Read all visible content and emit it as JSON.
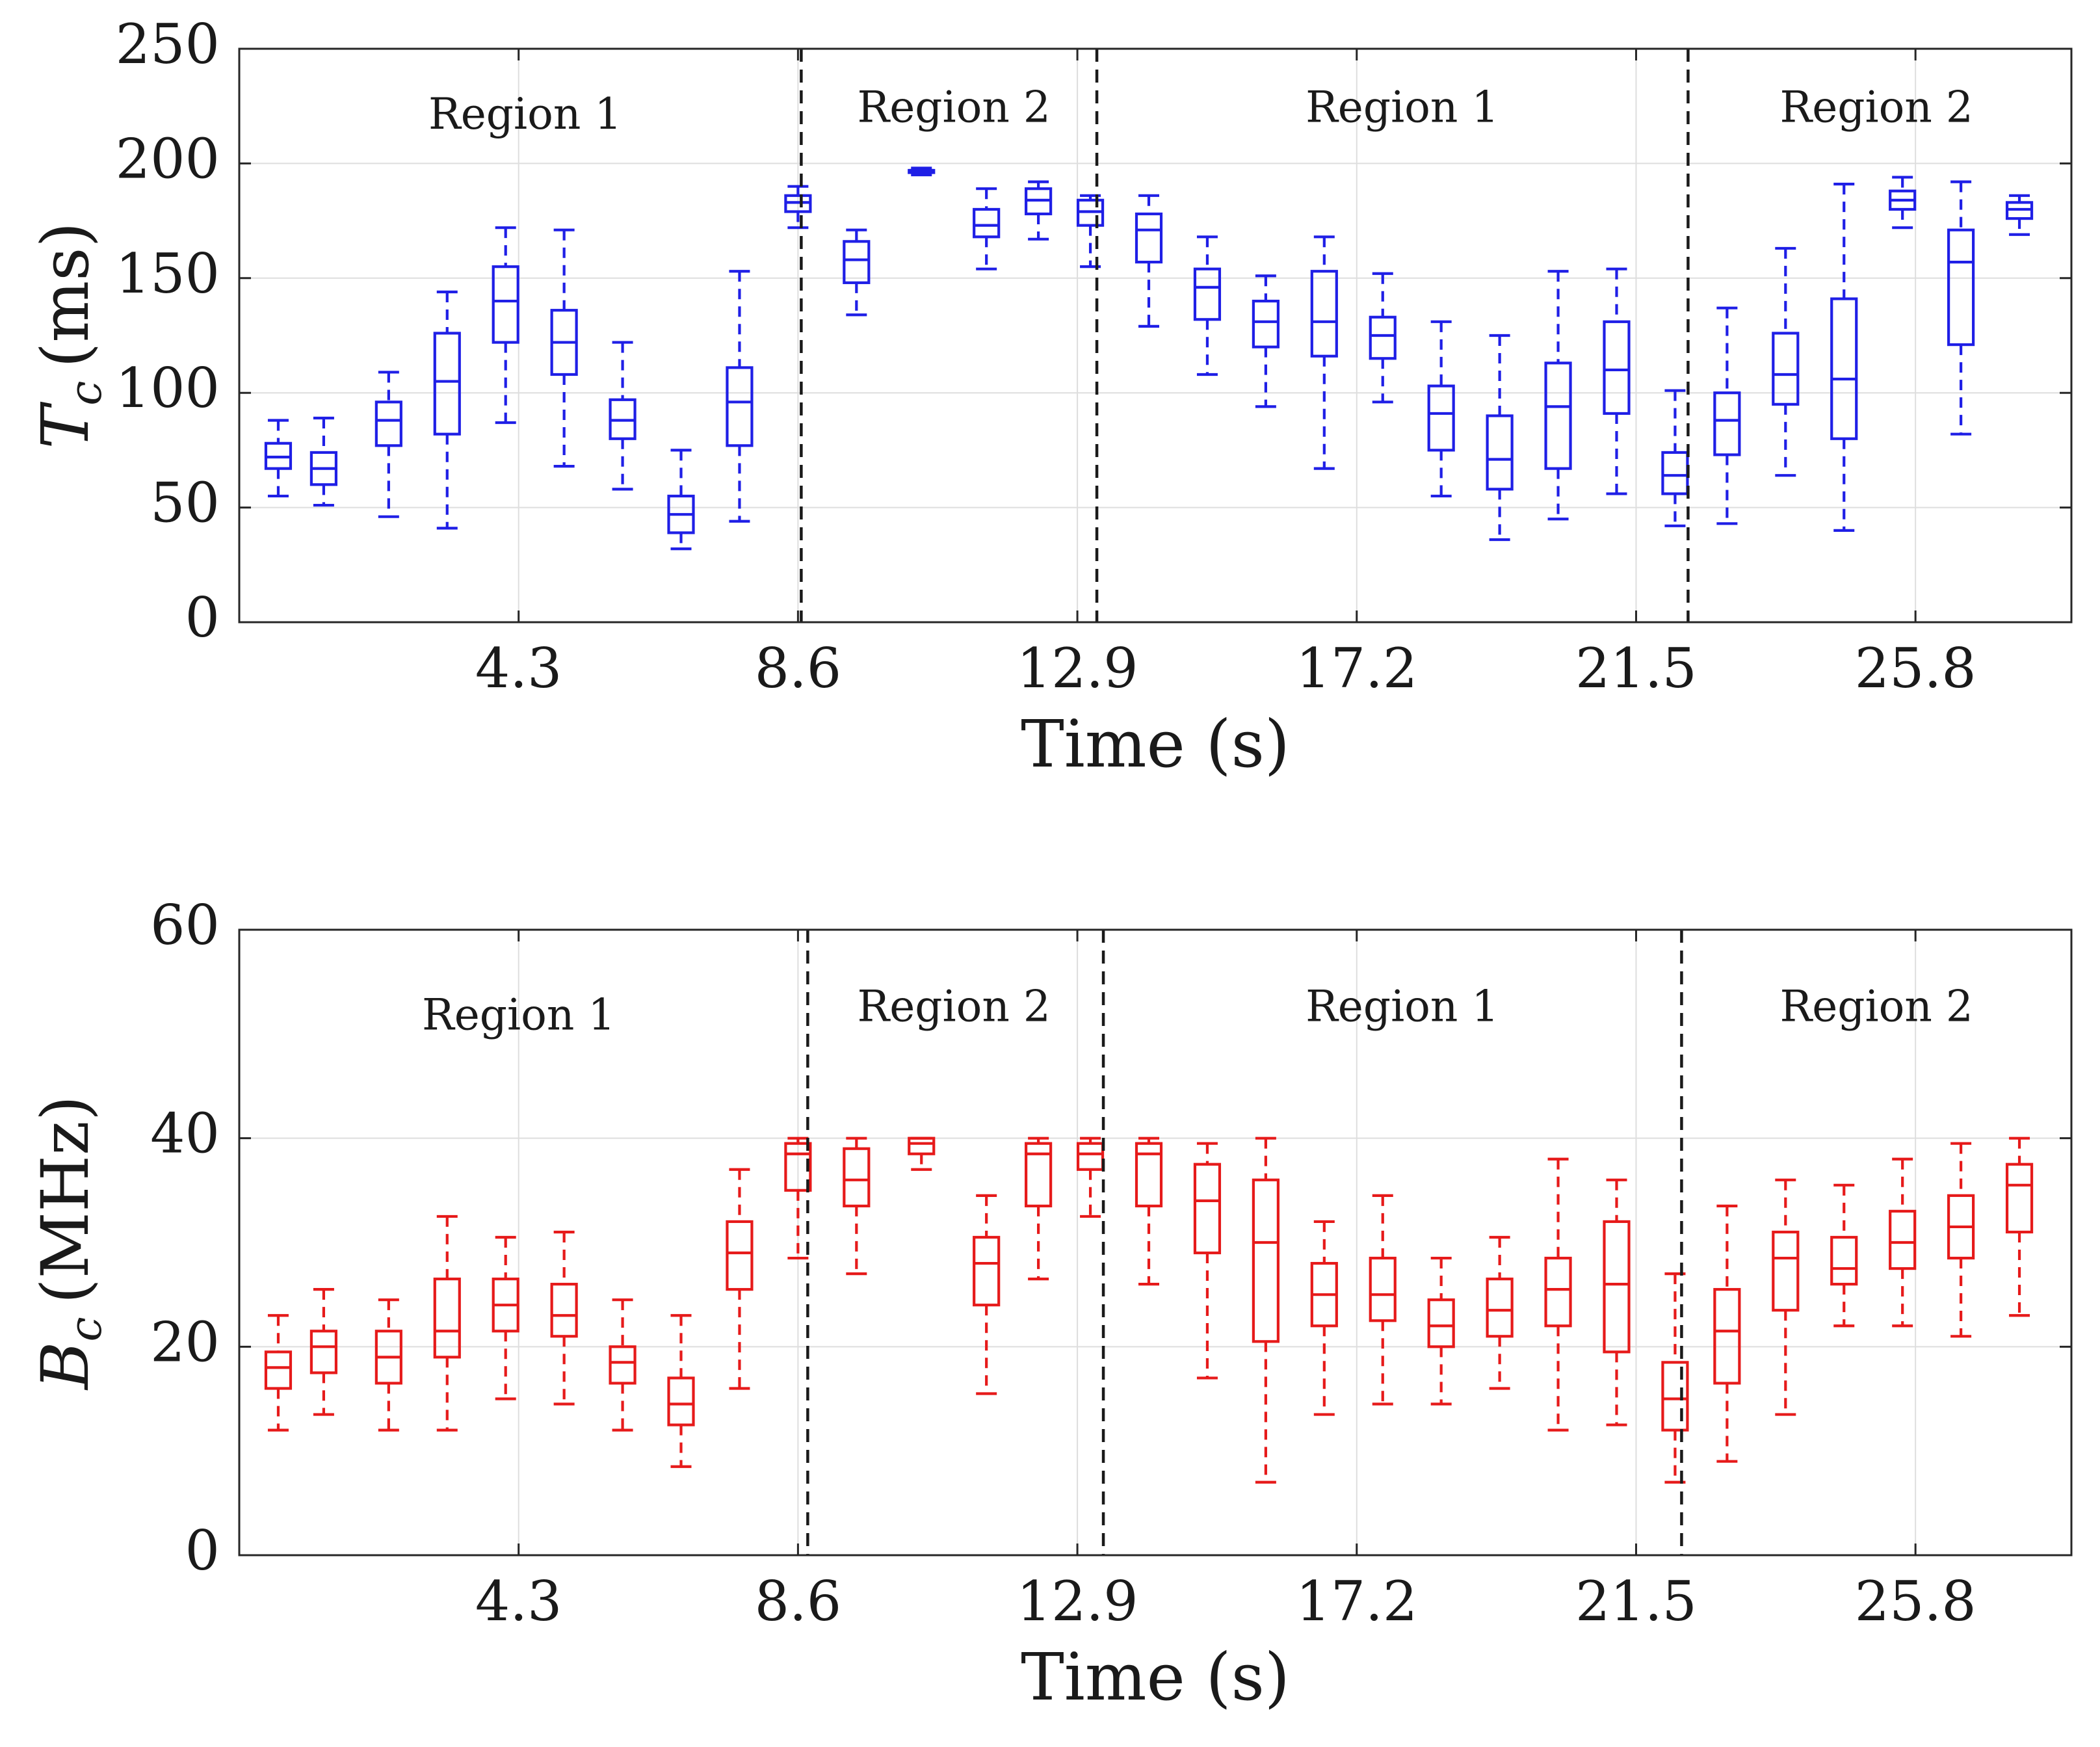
{
  "chart_data": [
    {
      "type": "box",
      "name": "top",
      "color": "#1f1fe6",
      "xlabel": "Time (s)",
      "ylabel": {
        "symbol": "T",
        "subscript": "c",
        "unit": "(ms)"
      },
      "xlim": [
        0,
        28.2
      ],
      "ylim": [
        0,
        250
      ],
      "yticks": [
        0,
        50,
        100,
        150,
        200,
        250
      ],
      "xticks": [
        4.3,
        8.6,
        12.9,
        17.2,
        21.5,
        25.8
      ],
      "xtick_labels": [
        "4.3",
        "8.6",
        "12.9",
        "17.2",
        "21.5",
        "25.8"
      ],
      "grid": true,
      "boundaries": [
        8.65,
        13.2,
        22.3
      ],
      "regions": [
        {
          "label": "Region 1",
          "x": 4.4,
          "y": 220
        },
        {
          "label": "Region 2",
          "x": 11.0,
          "y": 223
        },
        {
          "label": "Region 1",
          "x": 17.9,
          "y": 223
        },
        {
          "label": "Region 2",
          "x": 25.2,
          "y": 223
        }
      ],
      "boxes": [
        {
          "x": 0.6,
          "wmin": 55,
          "q1": 67,
          "median": 72,
          "q3": 78,
          "wmax": 88
        },
        {
          "x": 1.3,
          "wmin": 51,
          "q1": 60,
          "median": 67,
          "q3": 74,
          "wmax": 89
        },
        {
          "x": 2.3,
          "wmin": 46,
          "q1": 77,
          "median": 88,
          "q3": 96,
          "wmax": 109
        },
        {
          "x": 3.2,
          "wmin": 41,
          "q1": 82,
          "median": 105,
          "q3": 126,
          "wmax": 144
        },
        {
          "x": 4.1,
          "wmin": 87,
          "q1": 122,
          "median": 140,
          "q3": 155,
          "wmax": 172
        },
        {
          "x": 5.0,
          "wmin": 68,
          "q1": 108,
          "median": 122,
          "q3": 136,
          "wmax": 171
        },
        {
          "x": 5.9,
          "wmin": 58,
          "q1": 80,
          "median": 88,
          "q3": 97,
          "wmax": 122
        },
        {
          "x": 6.8,
          "wmin": 32,
          "q1": 39,
          "median": 47,
          "q3": 55,
          "wmax": 75
        },
        {
          "x": 7.7,
          "wmin": 44,
          "q1": 77,
          "median": 96,
          "q3": 111,
          "wmax": 153
        },
        {
          "x": 8.6,
          "wmin": 172,
          "q1": 179,
          "median": 183,
          "q3": 186,
          "wmax": 190
        },
        {
          "x": 9.5,
          "wmin": 134,
          "q1": 148,
          "median": 158,
          "q3": 166,
          "wmax": 171
        },
        {
          "x": 10.5,
          "wmin": 195,
          "q1": 196,
          "median": 197,
          "q3": 197,
          "wmax": 198
        },
        {
          "x": 11.5,
          "wmin": 154,
          "q1": 168,
          "median": 173,
          "q3": 180,
          "wmax": 189
        },
        {
          "x": 12.3,
          "wmin": 167,
          "q1": 178,
          "median": 184,
          "q3": 189,
          "wmax": 192
        },
        {
          "x": 13.1,
          "wmin": 155,
          "q1": 173,
          "median": 179,
          "q3": 184,
          "wmax": 186
        },
        {
          "x": 14.0,
          "wmin": 129,
          "q1": 157,
          "median": 171,
          "q3": 178,
          "wmax": 186
        },
        {
          "x": 14.9,
          "wmin": 108,
          "q1": 132,
          "median": 146,
          "q3": 154,
          "wmax": 168
        },
        {
          "x": 15.8,
          "wmin": 94,
          "q1": 120,
          "median": 131,
          "q3": 140,
          "wmax": 151
        },
        {
          "x": 16.7,
          "wmin": 67,
          "q1": 116,
          "median": 131,
          "q3": 153,
          "wmax": 168
        },
        {
          "x": 17.6,
          "wmin": 96,
          "q1": 115,
          "median": 125,
          "q3": 133,
          "wmax": 152
        },
        {
          "x": 18.5,
          "wmin": 55,
          "q1": 75,
          "median": 91,
          "q3": 103,
          "wmax": 131
        },
        {
          "x": 19.4,
          "wmin": 36,
          "q1": 58,
          "median": 71,
          "q3": 90,
          "wmax": 125
        },
        {
          "x": 20.3,
          "wmin": 45,
          "q1": 67,
          "median": 94,
          "q3": 113,
          "wmax": 153
        },
        {
          "x": 21.2,
          "wmin": 56,
          "q1": 91,
          "median": 110,
          "q3": 131,
          "wmax": 154
        },
        {
          "x": 22.1,
          "wmin": 42,
          "q1": 56,
          "median": 64,
          "q3": 74,
          "wmax": 101
        },
        {
          "x": 22.9,
          "wmin": 43,
          "q1": 73,
          "median": 88,
          "q3": 100,
          "wmax": 137
        },
        {
          "x": 23.8,
          "wmin": 64,
          "q1": 95,
          "median": 108,
          "q3": 126,
          "wmax": 163
        },
        {
          "x": 24.7,
          "wmin": 40,
          "q1": 80,
          "median": 106,
          "q3": 141,
          "wmax": 191
        },
        {
          "x": 25.6,
          "wmin": 172,
          "q1": 180,
          "median": 184,
          "q3": 188,
          "wmax": 194
        },
        {
          "x": 26.5,
          "wmin": 82,
          "q1": 121,
          "median": 157,
          "q3": 171,
          "wmax": 192
        },
        {
          "x": 27.4,
          "wmin": 169,
          "q1": 176,
          "median": 180,
          "q3": 183,
          "wmax": 186
        }
      ]
    },
    {
      "type": "box",
      "name": "bottom",
      "color": "#e61a1a",
      "xlabel": "Time (s)",
      "ylabel": {
        "symbol": "B",
        "subscript": "c",
        "unit": "(MHz)"
      },
      "xlim": [
        0,
        28.2
      ],
      "ylim": [
        0,
        60
      ],
      "yticks": [
        0,
        20,
        40,
        60
      ],
      "xticks": [
        4.3,
        8.6,
        12.9,
        17.2,
        21.5,
        25.8
      ],
      "xtick_labels": [
        "4.3",
        "8.6",
        "12.9",
        "17.2",
        "21.5",
        "25.8"
      ],
      "grid": true,
      "boundaries": [
        8.75,
        13.3,
        22.2
      ],
      "regions": [
        {
          "label": "Region 1",
          "x": 4.3,
          "y": 51.5
        },
        {
          "label": "Region 2",
          "x": 11.0,
          "y": 52.3
        },
        {
          "label": "Region 1",
          "x": 17.9,
          "y": 52.3
        },
        {
          "label": "Region 2",
          "x": 25.2,
          "y": 52.3
        }
      ],
      "boxes": [
        {
          "x": 0.6,
          "wmin": 12,
          "q1": 16,
          "median": 18,
          "q3": 19.5,
          "wmax": 23
        },
        {
          "x": 1.3,
          "wmin": 13.5,
          "q1": 17.5,
          "median": 20,
          "q3": 21.5,
          "wmax": 25.5
        },
        {
          "x": 2.3,
          "wmin": 12,
          "q1": 16.5,
          "median": 19,
          "q3": 21.5,
          "wmax": 24.5
        },
        {
          "x": 3.2,
          "wmin": 12,
          "q1": 19,
          "median": 21.5,
          "q3": 26.5,
          "wmax": 32.5
        },
        {
          "x": 4.1,
          "wmin": 15,
          "q1": 21.5,
          "median": 24,
          "q3": 26.5,
          "wmax": 30.5
        },
        {
          "x": 5.0,
          "wmin": 14.5,
          "q1": 21,
          "median": 23,
          "q3": 26,
          "wmax": 31
        },
        {
          "x": 5.9,
          "wmin": 12,
          "q1": 16.5,
          "median": 18.5,
          "q3": 20,
          "wmax": 24.5
        },
        {
          "x": 6.8,
          "wmin": 8.5,
          "q1": 12.5,
          "median": 14.5,
          "q3": 17,
          "wmax": 23
        },
        {
          "x": 7.7,
          "wmin": 16,
          "q1": 25.5,
          "median": 29,
          "q3": 32,
          "wmax": 37
        },
        {
          "x": 8.6,
          "wmin": 28.5,
          "q1": 35,
          "median": 38.5,
          "q3": 39.5,
          "wmax": 40
        },
        {
          "x": 9.5,
          "wmin": 27,
          "q1": 33.5,
          "median": 36,
          "q3": 39,
          "wmax": 40
        },
        {
          "x": 10.5,
          "wmin": 37,
          "q1": 38.5,
          "median": 39.5,
          "q3": 40,
          "wmax": 40
        },
        {
          "x": 11.5,
          "wmin": 15.5,
          "q1": 24,
          "median": 28,
          "q3": 30.5,
          "wmax": 34.5
        },
        {
          "x": 12.3,
          "wmin": 26.5,
          "q1": 33.5,
          "median": 38.5,
          "q3": 39.5,
          "wmax": 40
        },
        {
          "x": 13.1,
          "wmin": 32.5,
          "q1": 37,
          "median": 38.5,
          "q3": 39.5,
          "wmax": 40
        },
        {
          "x": 14.0,
          "wmin": 26,
          "q1": 33.5,
          "median": 38.5,
          "q3": 39.5,
          "wmax": 40
        },
        {
          "x": 14.9,
          "wmin": 17,
          "q1": 29,
          "median": 34,
          "q3": 37.5,
          "wmax": 39.5
        },
        {
          "x": 15.8,
          "wmin": 7,
          "q1": 20.5,
          "median": 30,
          "q3": 36,
          "wmax": 40
        },
        {
          "x": 16.7,
          "wmin": 13.5,
          "q1": 22,
          "median": 25,
          "q3": 28,
          "wmax": 32
        },
        {
          "x": 17.6,
          "wmin": 14.5,
          "q1": 22.5,
          "median": 25,
          "q3": 28.5,
          "wmax": 34.5
        },
        {
          "x": 18.5,
          "wmin": 14.5,
          "q1": 20,
          "median": 22,
          "q3": 24.5,
          "wmax": 28.5
        },
        {
          "x": 19.4,
          "wmin": 16,
          "q1": 21,
          "median": 23.5,
          "q3": 26.5,
          "wmax": 30.5
        },
        {
          "x": 20.3,
          "wmin": 12,
          "q1": 22,
          "median": 25.5,
          "q3": 28.5,
          "wmax": 38
        },
        {
          "x": 21.2,
          "wmin": 12.5,
          "q1": 19.5,
          "median": 26,
          "q3": 32,
          "wmax": 36
        },
        {
          "x": 22.1,
          "wmin": 7,
          "q1": 12,
          "median": 15,
          "q3": 18.5,
          "wmax": 27
        },
        {
          "x": 22.9,
          "wmin": 9,
          "q1": 16.5,
          "median": 21.5,
          "q3": 25.5,
          "wmax": 33.5
        },
        {
          "x": 23.8,
          "wmin": 13.5,
          "q1": 23.5,
          "median": 28.5,
          "q3": 31,
          "wmax": 36
        },
        {
          "x": 24.7,
          "wmin": 22,
          "q1": 26,
          "median": 27.5,
          "q3": 30.5,
          "wmax": 35.5
        },
        {
          "x": 25.6,
          "wmin": 22,
          "q1": 27.5,
          "median": 30,
          "q3": 33,
          "wmax": 38
        },
        {
          "x": 26.5,
          "wmin": 21,
          "q1": 28.5,
          "median": 31.5,
          "q3": 34.5,
          "wmax": 39.5
        },
        {
          "x": 27.4,
          "wmin": 23,
          "q1": 31,
          "median": 35.5,
          "q3": 37.5,
          "wmax": 40
        }
      ]
    }
  ]
}
